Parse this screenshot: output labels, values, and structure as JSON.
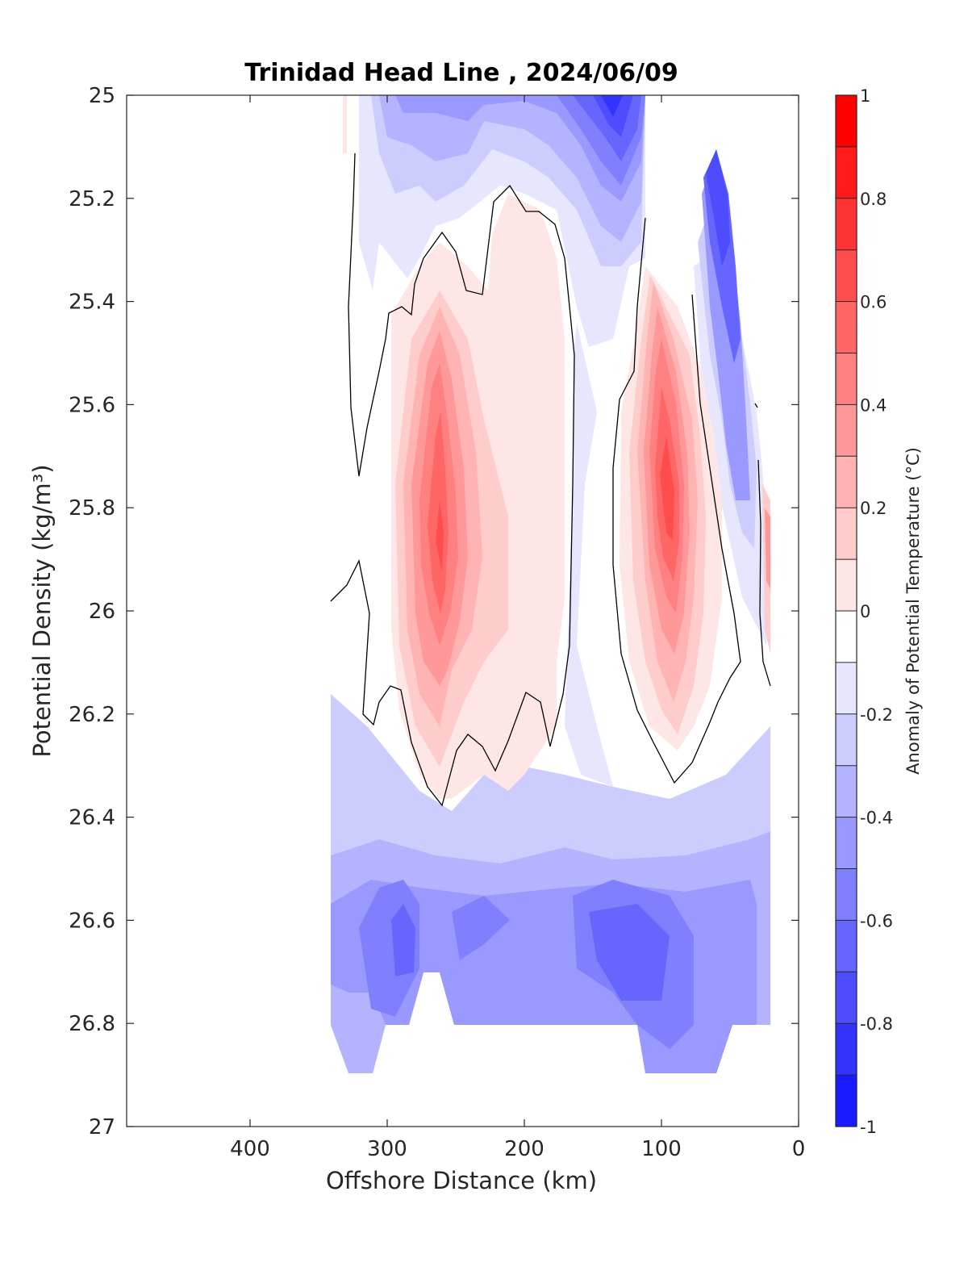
{
  "chart_data": {
    "type": "contourf",
    "title": "Trinidad Head Line , 2024/06/09",
    "xlabel": "Offshore Distance (km)",
    "ylabel": "Potential Density (kg/m³)",
    "xlim": [
      490,
      0
    ],
    "ylim": [
      25,
      27
    ],
    "x_direction": "reversed",
    "y_direction": "reversed (increasing downward)",
    "x_ticks": [
      400,
      300,
      200,
      100,
      0
    ],
    "y_ticks": [
      25,
      25.2,
      25.4,
      25.6,
      25.8,
      26,
      26.2,
      26.4,
      26.6,
      26.8,
      27
    ],
    "x_tick_labels": [
      "400",
      "300",
      "200",
      "100",
      "0"
    ],
    "y_tick_labels": [
      "25",
      "25.2",
      "25.4",
      "25.6",
      "25.8",
      "26",
      "26.2",
      "26.4",
      "26.6",
      "26.8",
      "27"
    ],
    "colorbar": {
      "label": "Anomaly of Potential Temperature (°C)",
      "range": [
        -1,
        1
      ],
      "level_step": 0.1,
      "ticks": [
        1,
        0.8,
        0.6,
        0.4,
        0.2,
        0,
        -0.2,
        -0.4,
        -0.6,
        -0.8,
        -1
      ],
      "tick_labels": [
        "1",
        "0.8",
        "0.6",
        "0.4",
        "0.2",
        "0",
        "-0.2",
        "-0.4",
        "-0.6",
        "-0.8",
        "-1"
      ],
      "colors_top_to_bottom": [
        "#ff0000",
        "#ff1a1a",
        "#ff3333",
        "#ff4d4d",
        "#ff6666",
        "#ff8080",
        "#ff9999",
        "#ffb3b3",
        "#ffcccc",
        "#ffe6e6",
        "#ffffff",
        "#e6e6ff",
        "#ccccff",
        "#b3b3ff",
        "#9999ff",
        "#8080ff",
        "#6666ff",
        "#4d4dff",
        "#3333ff",
        "#1a1aff"
      ]
    },
    "zero_contour_lines": 4,
    "background_color": "#ffffff",
    "features": [
      {
        "name": "warm core offshore",
        "x_km": 260,
        "sigma_theta": 25.87,
        "anomaly": 0.6
      },
      {
        "name": "warm core nearshore",
        "x_km": 90,
        "sigma_theta": 25.78,
        "anomaly": 0.7
      },
      {
        "name": "warm broad region",
        "x_km": 205,
        "sigma_theta": 25.75,
        "anomaly": 0.15
      },
      {
        "name": "cold surface core",
        "x_km": 140,
        "sigma_theta": 25.03,
        "anomaly": -0.9
      },
      {
        "name": "cold tongue nearshore",
        "x_km": 55,
        "sigma_theta": 25.25,
        "anomaly": -0.7
      },
      {
        "name": "cold deep core",
        "x_km": 120,
        "sigma_theta": 26.65,
        "anomaly": -0.7
      },
      {
        "name": "cold deep core offshore",
        "x_km": 280,
        "sigma_theta": 26.65,
        "anomaly": -0.6
      }
    ]
  }
}
